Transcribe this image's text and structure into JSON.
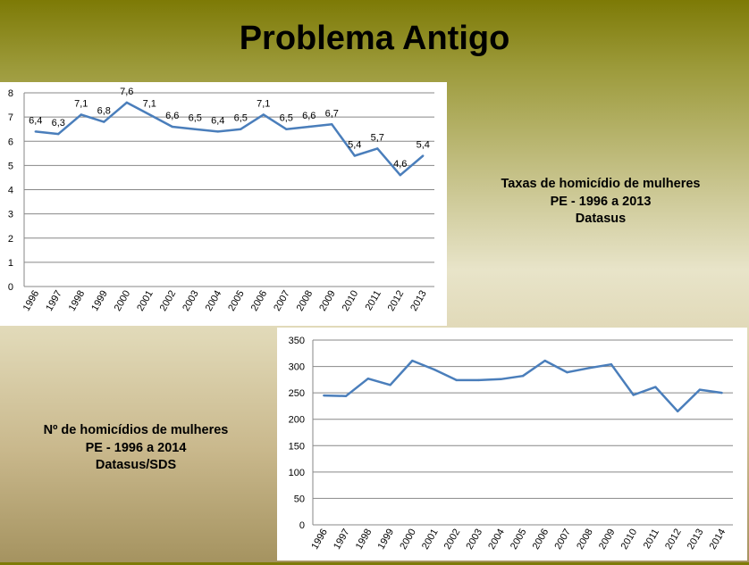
{
  "slide": {
    "title": "Problema Antigo",
    "caption_rates": [
      "Taxas de homicídio de mulheres",
      "PE - 1996 a 2013",
      "Datasus"
    ],
    "caption_counts": [
      "Nº de homicídios de mulheres",
      "PE - 1996 a 2014",
      "Datasus/SDS"
    ]
  },
  "colors": {
    "line": "#4a7ebb",
    "grid": "#878787",
    "axis_text": "#000000"
  },
  "chart_data": [
    {
      "type": "line",
      "title": "",
      "xlabel": "",
      "ylabel": "",
      "categories": [
        "1996",
        "1997",
        "1998",
        "1999",
        "2000",
        "2001",
        "2002",
        "2003",
        "2004",
        "2005",
        "2006",
        "2007",
        "2008",
        "2009",
        "2010",
        "2011",
        "2012",
        "2013"
      ],
      "values": [
        6.4,
        6.3,
        7.1,
        6.8,
        7.6,
        7.1,
        6.6,
        6.5,
        6.4,
        6.5,
        7.1,
        6.5,
        6.6,
        6.7,
        5.4,
        5.7,
        4.6,
        5.4
      ],
      "data_labels": [
        "6,4",
        "6,3",
        "7,1",
        "6,8",
        "7,6",
        "7,1",
        "6,6",
        "6,5",
        "6,4",
        "6,5",
        "7,1",
        "6,5",
        "6,6",
        "6,7",
        "5,4",
        "5,7",
        "4,6",
        "5,4"
      ],
      "ylim": [
        0,
        8
      ],
      "yticks": [
        0,
        1,
        2,
        3,
        4,
        5,
        6,
        7,
        8
      ],
      "grid": true
    },
    {
      "type": "line",
      "title": "",
      "xlabel": "",
      "ylabel": "",
      "categories": [
        "1996",
        "1997",
        "1998",
        "1999",
        "2000",
        "2001",
        "2002",
        "2003",
        "2004",
        "2005",
        "2006",
        "2007",
        "2008",
        "2009",
        "2010",
        "2011",
        "2012",
        "2013",
        "2014"
      ],
      "values": [
        245,
        244,
        277,
        265,
        311,
        294,
        274,
        274,
        276,
        282,
        311,
        289,
        297,
        304,
        246,
        261,
        215,
        256,
        250
      ],
      "ylim": [
        0,
        350
      ],
      "yticks": [
        0,
        50,
        100,
        150,
        200,
        250,
        300,
        350
      ],
      "grid": true
    }
  ]
}
